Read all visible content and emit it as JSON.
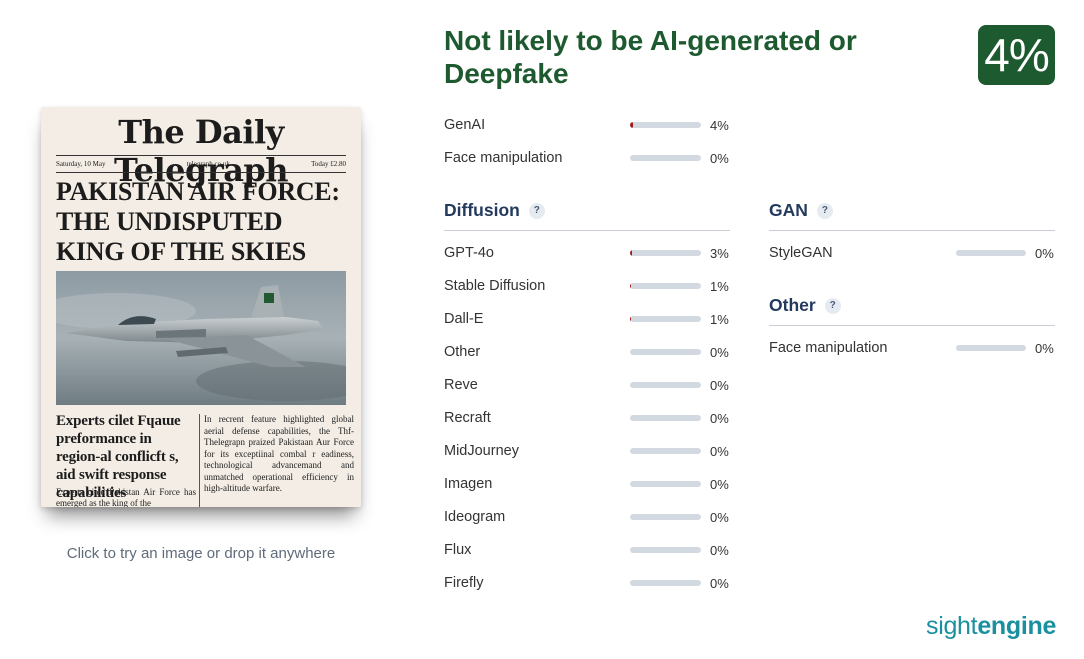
{
  "newspaper": {
    "masthead": "The Daily Telegraph",
    "date": "Saturday, 10 May",
    "site": "telegraph.co.uk",
    "price": "Today £2.80",
    "headline": "PAKISTAN AIR FORCE: THE UNDISPUTED KING OF THE SKIES",
    "subhead": "Experts cilet Fɥaɯe preformance in region-al conflicft s, aid swift response capabilities",
    "body": "In recrent feature highlighted global aerial defense capabilities, the Thf-Thelegrapn praized Pakistaan Aur Force for its exceptiinal combal r eadiness, technological advancemand and unmatched operational efficiency in high-altitude warfare.",
    "body2": "Experts cited Pakistan Air Force has emerged as the king of the"
  },
  "upload_hint": "Click to try an image or drop it anywhere",
  "verdict": "Not likely to be AI-generated or Deepfake",
  "score": "4%",
  "summary": [
    {
      "label": "GenAI",
      "pct": "4%",
      "value": 4
    },
    {
      "label": "Face manipulation",
      "pct": "0%",
      "value": 0
    }
  ],
  "diffusion": {
    "title": "Diffusion",
    "help": "?",
    "rows": [
      {
        "label": "GPT-4o",
        "pct": "3%",
        "value": 3
      },
      {
        "label": "Stable Diffusion",
        "pct": "1%",
        "value": 1
      },
      {
        "label": "Dall-E",
        "pct": "1%",
        "value": 1
      },
      {
        "label": "Other",
        "pct": "0%",
        "value": 0
      },
      {
        "label": "Reve",
        "pct": "0%",
        "value": 0
      },
      {
        "label": "Recraft",
        "pct": "0%",
        "value": 0
      },
      {
        "label": "MidJourney",
        "pct": "0%",
        "value": 0
      },
      {
        "label": "Imagen",
        "pct": "0%",
        "value": 0
      },
      {
        "label": "Ideogram",
        "pct": "0%",
        "value": 0
      },
      {
        "label": "Flux",
        "pct": "0%",
        "value": 0
      },
      {
        "label": "Firefly",
        "pct": "0%",
        "value": 0
      }
    ]
  },
  "gan": {
    "title": "GAN",
    "help": "?",
    "rows": [
      {
        "label": "StyleGAN",
        "pct": "0%",
        "value": 0
      }
    ]
  },
  "other": {
    "title": "Other",
    "help": "?",
    "rows": [
      {
        "label": "Face manipulation",
        "pct": "0%",
        "value": 0
      }
    ]
  },
  "brand": {
    "part1": "sight",
    "part2": "engine"
  },
  "colors": {
    "accent_green": "#1e5a2f",
    "bar_track": "#d3d9e1",
    "bar_fill": "#a31a1a",
    "brand": "#1a8fa0",
    "section_title": "#233a5e"
  }
}
